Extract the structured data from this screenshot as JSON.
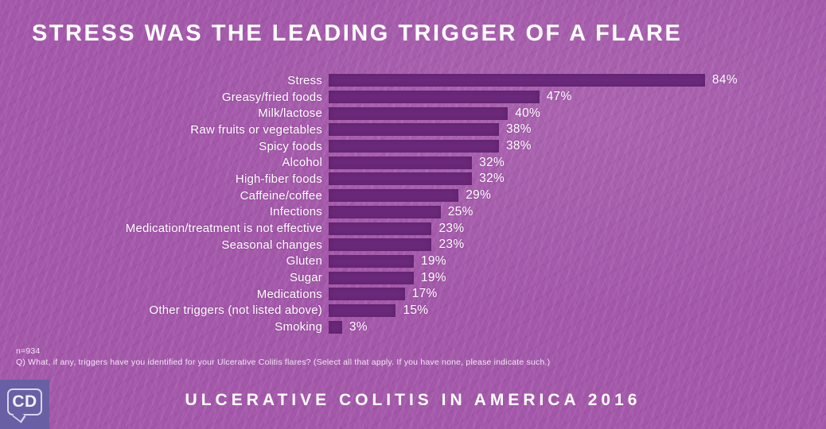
{
  "title": "STRESS WAS THE LEADING TRIGGER OF A FLARE",
  "chart_data": {
    "type": "bar",
    "orientation": "horizontal",
    "categories": [
      "Stress",
      "Greasy/fried foods",
      "Milk/lactose",
      "Raw fruits or vegetables",
      "Spicy foods",
      "Alcohol",
      "High-fiber foods",
      "Caffeine/coffee",
      "Infections",
      "Medication/treatment is not effective",
      "Seasonal changes",
      "Gluten",
      "Sugar",
      "Medications",
      "Other triggers (not listed above)",
      "Smoking"
    ],
    "values": [
      84,
      47,
      40,
      38,
      38,
      32,
      32,
      29,
      25,
      23,
      23,
      19,
      19,
      17,
      15,
      3
    ],
    "value_suffix": "%",
    "xlim": [
      0,
      100
    ],
    "grid": false,
    "legend": "none",
    "data_labels": "outside-end"
  },
  "footnotes": {
    "sample_size": "n=934",
    "question": "Q) What, if any, triggers have you identified for your Ulcerative Colitis flares? (Select all that apply. If you have none, please indicate such.)"
  },
  "footer": {
    "campaign": "ULCERATIVE COLITIS IN AMERICA 2016",
    "logo_text": "CD"
  },
  "colors": {
    "background": "#a458aa",
    "bar": "#6d2a7d",
    "text": "#ffffff",
    "logo_background": "#695fa4",
    "logo_accent": "#d9d3ee"
  }
}
